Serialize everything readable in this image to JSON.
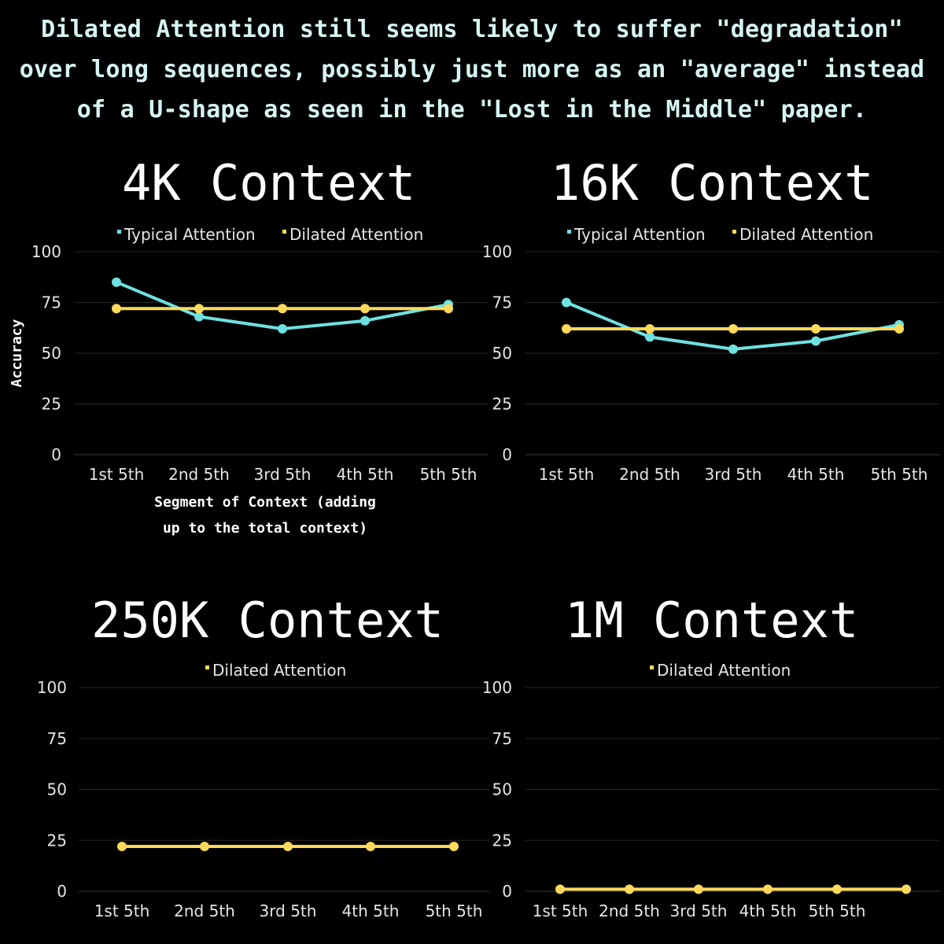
{
  "headline": [
    "Dilated Attention still seems likely to suffer \"degradation\"",
    "over long sequences, possibly just more as an \"average\" instead",
    "of a U-shape as seen in the \"Lost in the Middle\" paper."
  ],
  "colors": {
    "typical": "#6ee2e0",
    "dilated": "#ffd95a",
    "grid": "#262626",
    "background": "#000000"
  },
  "chart_data": [
    {
      "type": "line",
      "title": "4K Context",
      "categories": [
        "1st 5th",
        "2nd 5th",
        "3rd 5th",
        "4th 5th",
        "5th 5th"
      ],
      "series": [
        {
          "name": "Typical Attention",
          "values": [
            85,
            68,
            62,
            66,
            74
          ]
        },
        {
          "name": "Dilated Attention",
          "values": [
            72,
            72,
            72,
            72,
            72
          ]
        }
      ],
      "ylim": [
        0,
        100
      ],
      "yticks": [
        0,
        25,
        50,
        75,
        100
      ],
      "ylabel": "Accuracy",
      "xlabel": [
        "Segment of Context (adding",
        "up to the total context)"
      ],
      "legend": "top-center",
      "grid": true
    },
    {
      "type": "line",
      "title": "16K Context",
      "categories": [
        "1st 5th",
        "2nd 5th",
        "3rd 5th",
        "4th 5th",
        "5th 5th"
      ],
      "series": [
        {
          "name": "Typical Attention",
          "values": [
            75,
            58,
            52,
            56,
            64
          ]
        },
        {
          "name": "Dilated Attention",
          "values": [
            62,
            62,
            62,
            62,
            62
          ]
        }
      ],
      "ylim": [
        0,
        100
      ],
      "yticks": [
        0,
        25,
        50,
        75,
        100
      ],
      "ylabel": "",
      "xlabel": [],
      "legend": "top-center",
      "grid": true
    },
    {
      "type": "line",
      "title": "250K Context",
      "categories": [
        "1st 5th",
        "2nd 5th",
        "3rd 5th",
        "4th 5th",
        "5th 5th"
      ],
      "series": [
        {
          "name": "Dilated Attention",
          "values": [
            22,
            22,
            22,
            22,
            22
          ]
        }
      ],
      "ylim": [
        0,
        100
      ],
      "yticks": [
        0,
        25,
        50,
        75,
        100
      ],
      "ylabel": "",
      "xlabel": [],
      "legend": "top-center",
      "grid": true
    },
    {
      "type": "line",
      "title": "1M Context",
      "categories": [
        "1st 5th",
        "2nd 5th",
        "3rd 5th",
        "4th 5th",
        "5th 5th"
      ],
      "series": [
        {
          "name": "Dilated Attention",
          "values": [
            1,
            1,
            1,
            1,
            1
          ]
        }
      ],
      "ylim": [
        0,
        100
      ],
      "yticks": [
        0,
        25,
        50,
        75,
        100
      ],
      "ylabel": "",
      "xlabel": [],
      "legend": "top-center",
      "grid": true
    }
  ]
}
